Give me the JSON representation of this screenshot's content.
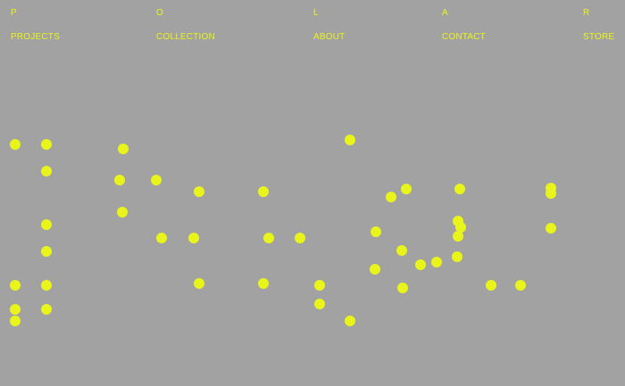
{
  "brand": {
    "letters": [
      "P",
      "O",
      "L",
      "A",
      "R"
    ]
  },
  "nav": {
    "items": [
      {
        "label": "PROJECTS"
      },
      {
        "label": "COLLECTION"
      },
      {
        "label": "ABOUT"
      },
      {
        "label": "CONTACT"
      },
      {
        "label": "STORE"
      }
    ]
  },
  "colors": {
    "background": "#a2a2a2",
    "accent": "#e9f51a"
  }
}
